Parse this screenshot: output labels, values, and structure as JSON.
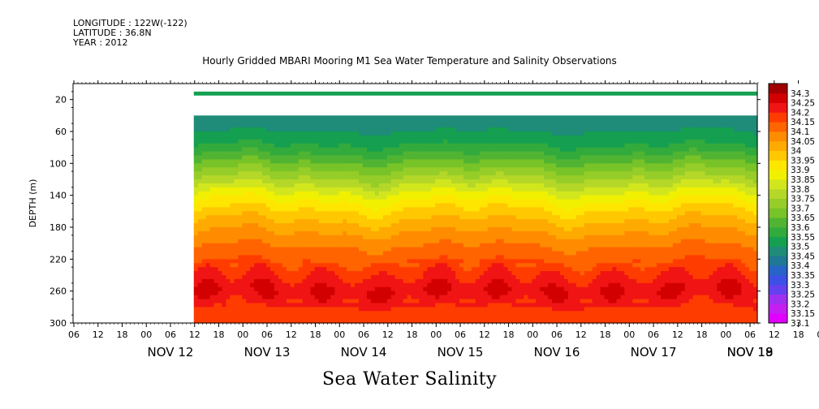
{
  "header": {
    "longitude": "LONGITUDE : 122W(-122)",
    "latitude": "LATITUDE : 36.8N",
    "year": "YEAR : 2012"
  },
  "chart_data": {
    "type": "heatmap",
    "title": "Hourly Gridded MBARI Mooring M1 Sea Water Temperature and Salinity Observations",
    "variable": "Sea Water Salinity",
    "ylabel": "DEPTH (m)",
    "ylim": [
      300,
      0
    ],
    "yticks": [
      20,
      60,
      100,
      140,
      180,
      220,
      260,
      300
    ],
    "xlim_hours": [
      0,
      170
    ],
    "xticks_hours": [
      "06",
      "12",
      "18",
      "00",
      "06",
      "12",
      "18",
      "00",
      "06",
      "12",
      "18",
      "00",
      "06",
      "12",
      "18",
      "00",
      "06",
      "12",
      "18",
      "00",
      "06",
      "12",
      "18",
      "00",
      "06",
      "12",
      "18",
      "00",
      "06",
      "12",
      "18",
      "00",
      "06"
    ],
    "date_labels": [
      "NOV 12",
      "NOV 13",
      "NOV 14",
      "NOV 15",
      "NOV 16",
      "NOV 17",
      "NOV 18",
      "NOV 19"
    ],
    "colorbar": {
      "levels": [
        33.1,
        33.15,
        33.2,
        33.25,
        33.3,
        33.35,
        33.4,
        33.45,
        33.5,
        33.55,
        33.6,
        33.65,
        33.7,
        33.75,
        33.8,
        33.85,
        33.9,
        33.95,
        34,
        34.05,
        34.1,
        34.15,
        34.2,
        34.25,
        34.3
      ],
      "colors": [
        "#e100ff",
        "#c41ef0",
        "#a030f0",
        "#6440f0",
        "#3c50e6",
        "#2864c8",
        "#1e7896",
        "#1e8c78",
        "#14a050",
        "#32aa3c",
        "#50b432",
        "#78c328",
        "#96cd28",
        "#b4d728",
        "#d2e61e",
        "#f0f000",
        "#ffe600",
        "#ffc800",
        "#ffaa00",
        "#ff8c00",
        "#ff6400",
        "#ff3c00",
        "#f01414",
        "#d20000",
        "#a00000"
      ]
    },
    "no_data": [
      "depth 0-10 m",
      "depth 15-40 m",
      "before Nov 12 12:00"
    ],
    "profile_levels_by_depth": [
      {
        "depth": 12,
        "salinity": 33.5
      },
      {
        "depth": 45,
        "salinity": 33.47
      },
      {
        "depth": 60,
        "salinity": 33.5
      },
      {
        "depth": 80,
        "salinity": 33.56
      },
      {
        "depth": 100,
        "salinity": 33.66
      },
      {
        "depth": 120,
        "salinity": 33.76
      },
      {
        "depth": 140,
        "salinity": 33.87
      },
      {
        "depth": 160,
        "salinity": 33.96
      },
      {
        "depth": 180,
        "salinity": 34.03
      },
      {
        "depth": 200,
        "salinity": 34.09
      },
      {
        "depth": 220,
        "salinity": 34.14
      },
      {
        "depth": 240,
        "salinity": 34.2
      },
      {
        "depth": 260,
        "salinity": 34.25
      },
      {
        "depth": 280,
        "salinity": 34.2
      },
      {
        "depth": 300,
        "salinity": 34.17
      }
    ]
  }
}
